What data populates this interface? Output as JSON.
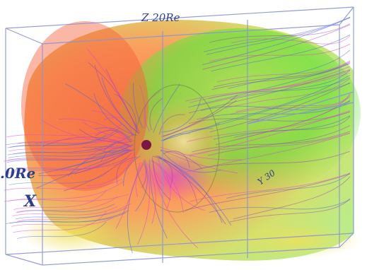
{
  "figure": {
    "labels": {
      "z_axis": "Z 20Re",
      "x_axis_scale": ".0Re",
      "x_axis_name": "X",
      "y_axis": "Y 30"
    },
    "colors": {
      "background": "#ffffff",
      "box_edges": "#8b93d6",
      "magnetosphere_outer": "#fb7a3c",
      "magnetosphere_mid": "#9ee23c",
      "magnetosphere_inner": "#e3c55a",
      "field_lines_blue": "#4d64d8",
      "field_lines_purple": "#9a3fb5",
      "field_lines_magenta": "#e13fd0",
      "earth": "#7a1640"
    }
  }
}
